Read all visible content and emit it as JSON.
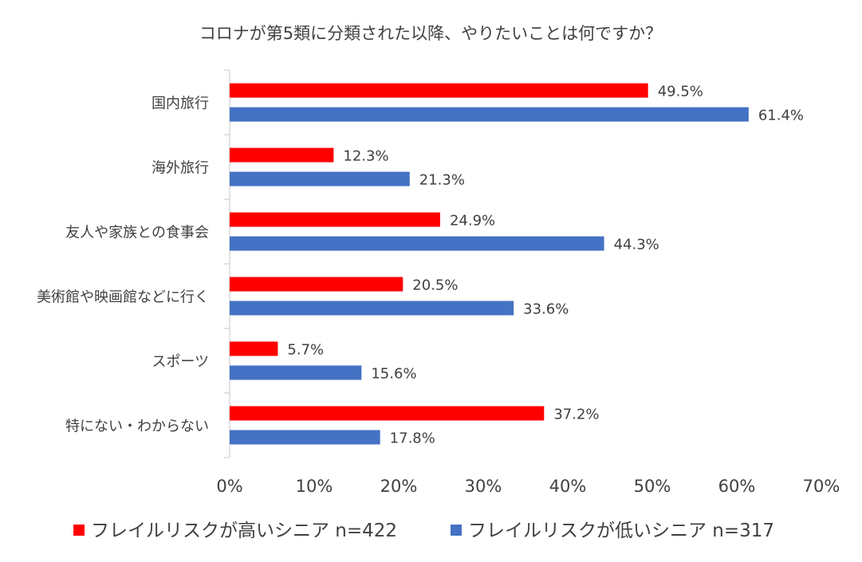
{
  "chart_data": {
    "type": "bar",
    "orientation": "horizontal",
    "title": "コロナが第5類に分類された以降、やりたいことは何ですか？",
    "categories": [
      "国内旅行",
      "海外旅行",
      "友人や家族との食事会",
      "美術館や映画館などに行く",
      "スポーツ",
      "特にない・わからない"
    ],
    "series": [
      {
        "name": "フレイルリスクが高いシニア n=422",
        "color": "#ff0000",
        "values": [
          49.5,
          12.3,
          24.9,
          20.5,
          5.7,
          37.2
        ],
        "labels": [
          "49.5%",
          "12.3%",
          "24.9%",
          "20.5%",
          "5.7%",
          "37.2%"
        ]
      },
      {
        "name": "フレイルリスクが低いシニア n=317",
        "color": "#4472c4",
        "values": [
          61.4,
          21.3,
          44.3,
          33.6,
          15.6,
          17.8
        ],
        "labels": [
          "61.4%",
          "21.3%",
          "44.3%",
          "33.6%",
          "15.6%",
          "17.8%"
        ]
      }
    ],
    "xlim": [
      0,
      70
    ],
    "xticks": [
      "0%",
      "10%",
      "20%",
      "30%",
      "40%",
      "50%",
      "60%",
      "70%"
    ],
    "legend_position": "bottom",
    "grid": false
  }
}
